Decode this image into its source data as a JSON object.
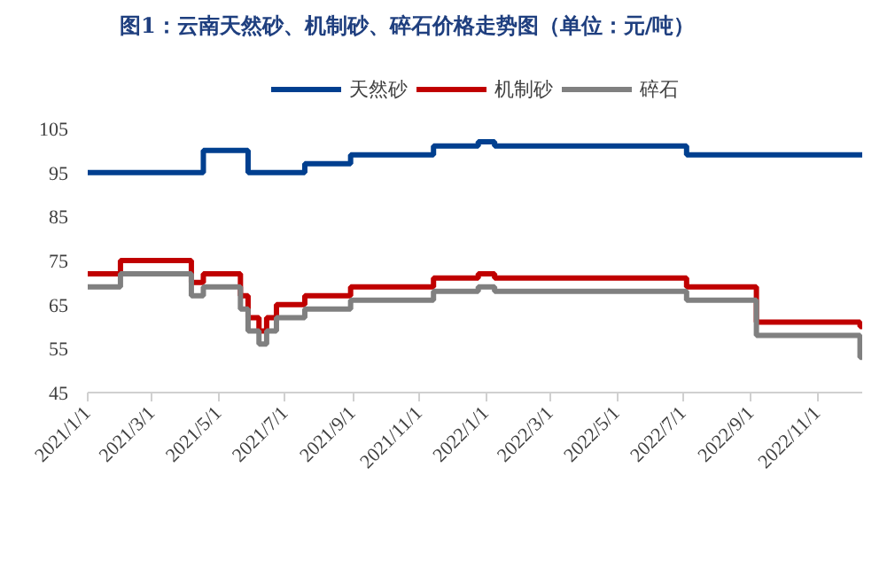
{
  "chart_data": {
    "type": "step",
    "title": "图1：云南天然砂、机制砂、碎石价格走势图（单位：元/吨）",
    "series": [
      {
        "name": "天然砂",
        "color": "#003f8f",
        "x": [
          "2021-01-01",
          "2021-04-17",
          "2021-05-28",
          "2021-07-19",
          "2021-08-30",
          "2021-11-14",
          "2021-12-25",
          "2022-01-09",
          "2022-07-04",
          "2022-12-12"
        ],
        "values": [
          95,
          100,
          95,
          97,
          99,
          101,
          102,
          101,
          99,
          99
        ]
      },
      {
        "name": "机制砂",
        "color": "#c00000",
        "x": [
          "2021-01-01",
          "2021-01-31",
          "2021-04-06",
          "2021-04-17",
          "2021-05-21",
          "2021-05-28",
          "2021-06-07",
          "2021-06-14",
          "2021-06-23",
          "2021-07-19",
          "2021-08-30",
          "2021-11-14",
          "2021-12-25",
          "2022-01-09",
          "2022-07-04",
          "2022-09-06",
          "2022-12-10",
          "2022-12-12"
        ],
        "values": [
          72,
          75,
          70,
          72,
          67,
          62,
          59,
          62,
          65,
          67,
          69,
          71,
          72,
          71,
          69,
          61,
          60,
          60
        ]
      },
      {
        "name": "碎石",
        "color": "#808080",
        "x": [
          "2021-01-01",
          "2021-01-31",
          "2021-04-06",
          "2021-04-17",
          "2021-05-21",
          "2021-05-28",
          "2021-06-07",
          "2021-06-14",
          "2021-06-23",
          "2021-07-19",
          "2021-08-30",
          "2021-11-14",
          "2021-12-25",
          "2022-01-09",
          "2022-07-04",
          "2022-09-06",
          "2022-12-10",
          "2022-12-12"
        ],
        "values": [
          69,
          72,
          67,
          69,
          64,
          59,
          56,
          59,
          62,
          64,
          66,
          68,
          69,
          68,
          66,
          58,
          53,
          53
        ]
      }
    ],
    "xlim": [
      "2021-01-01",
      "2022-12-12"
    ],
    "xticks": [
      {
        "value": "2021-01-01",
        "label": "2021/1/1"
      },
      {
        "value": "2021-03-01",
        "label": "2021/3/1"
      },
      {
        "value": "2021-05-01",
        "label": "2021/5/1"
      },
      {
        "value": "2021-07-01",
        "label": "2021/7/1"
      },
      {
        "value": "2021-09-01",
        "label": "2021/9/1"
      },
      {
        "value": "2021-11-01",
        "label": "2021/11/1"
      },
      {
        "value": "2022-01-01",
        "label": "2022/1/1"
      },
      {
        "value": "2022-03-01",
        "label": "2022/3/1"
      },
      {
        "value": "2022-05-01",
        "label": "2022/5/1"
      },
      {
        "value": "2022-07-01",
        "label": "2022/7/1"
      },
      {
        "value": "2022-09-01",
        "label": "2022/9/1"
      },
      {
        "value": "2022-11-01",
        "label": "2022/11/1"
      }
    ],
    "ylim": [
      45,
      105
    ],
    "yticks": [
      45,
      55,
      65,
      75,
      85,
      95,
      105
    ],
    "legend": "top",
    "grid": false,
    "marker": "none",
    "line_style": "solid"
  }
}
